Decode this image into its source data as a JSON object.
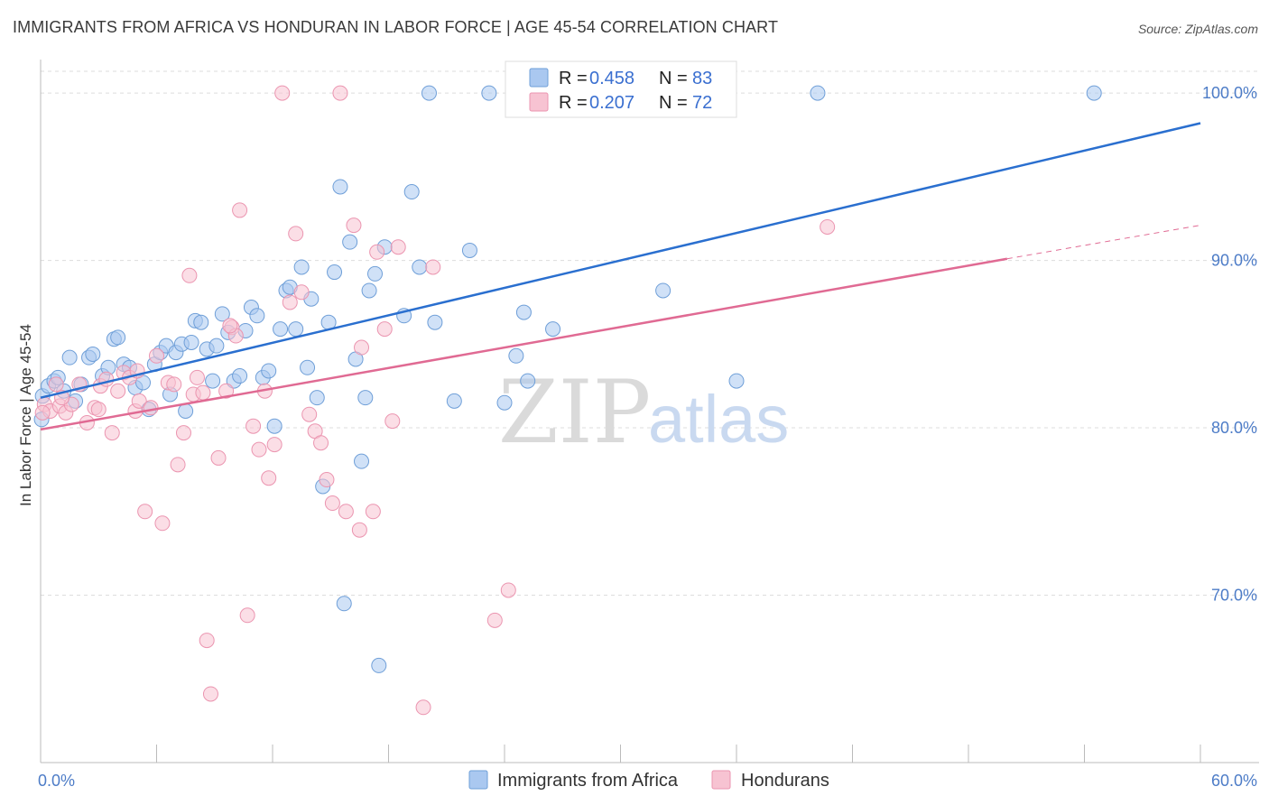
{
  "title": "IMMIGRANTS FROM AFRICA VS HONDURAN IN LABOR FORCE | AGE 45-54 CORRELATION CHART",
  "source": "Source: ZipAtlas.com",
  "watermark": {
    "zip": "ZIP",
    "atlas": "atlas"
  },
  "colors": {
    "blue_fill": "#aac8f0",
    "blue_stroke": "#6f9fd8",
    "blue_line": "#2a6fcf",
    "pink_fill": "#f7c3d2",
    "pink_stroke": "#eb95b0",
    "pink_line": "#e06a93",
    "grid": "#dddddd",
    "tick_text": "#4d7cc7"
  },
  "legend_top": {
    "rows": [
      {
        "r_label": "R = ",
        "r_value": "0.458",
        "n_label": "N = ",
        "n_value": "83",
        "color": "blue"
      },
      {
        "r_label": "R = ",
        "r_value": "0.207",
        "n_label": "N = ",
        "n_value": "72",
        "color": "pink"
      }
    ]
  },
  "chart_data": {
    "type": "scatter",
    "xlabel": "",
    "ylabel": "In Labor Force | Age 45-54",
    "xlim": [
      0,
      60
    ],
    "ylim": [
      60,
      102
    ],
    "x_tick_labels": [
      {
        "value": 0,
        "label": "0.0%"
      },
      {
        "value": 60,
        "label": "60.0%"
      }
    ],
    "y_tick_labels": [
      {
        "value": 70,
        "label": "70.0%"
      },
      {
        "value": 80,
        "label": "80.0%"
      },
      {
        "value": 90,
        "label": "90.0%"
      },
      {
        "value": 100,
        "label": "100.0%"
      }
    ],
    "x_minor_ticks": [
      6,
      12,
      18,
      24,
      30,
      36,
      42,
      48,
      54,
      60
    ],
    "legend_position": "bottom",
    "series": [
      {
        "name": "Immigrants from Africa",
        "color": "blue",
        "trend": {
          "x": [
            0,
            60
          ],
          "y": [
            81.8,
            98.2
          ],
          "dashed_from": null
        },
        "points": [
          [
            0.1,
            81.9
          ],
          [
            0.4,
            82.5
          ],
          [
            0.7,
            82.8
          ],
          [
            0.9,
            83.0
          ],
          [
            1.2,
            82.2
          ],
          [
            1.5,
            84.2
          ],
          [
            1.8,
            81.6
          ],
          [
            2.1,
            82.6
          ],
          [
            2.5,
            84.2
          ],
          [
            2.7,
            84.4
          ],
          [
            3.2,
            83.1
          ],
          [
            3.5,
            83.6
          ],
          [
            3.8,
            85.3
          ],
          [
            4.0,
            85.4
          ],
          [
            4.3,
            83.8
          ],
          [
            4.6,
            83.6
          ],
          [
            4.9,
            82.4
          ],
          [
            5.3,
            82.7
          ],
          [
            5.6,
            81.1
          ],
          [
            5.9,
            83.8
          ],
          [
            6.2,
            84.5
          ],
          [
            6.5,
            84.9
          ],
          [
            6.7,
            82.0
          ],
          [
            7.0,
            84.5
          ],
          [
            7.3,
            85.0
          ],
          [
            7.5,
            81.0
          ],
          [
            7.8,
            85.1
          ],
          [
            8.0,
            86.4
          ],
          [
            8.3,
            86.3
          ],
          [
            8.6,
            84.7
          ],
          [
            8.9,
            82.8
          ],
          [
            9.1,
            84.9
          ],
          [
            9.4,
            86.8
          ],
          [
            9.7,
            85.7
          ],
          [
            10.0,
            82.8
          ],
          [
            10.3,
            83.1
          ],
          [
            10.6,
            85.8
          ],
          [
            10.9,
            87.2
          ],
          [
            11.2,
            86.7
          ],
          [
            11.5,
            83.0
          ],
          [
            11.8,
            83.4
          ],
          [
            12.1,
            80.1
          ],
          [
            12.4,
            85.9
          ],
          [
            12.7,
            88.2
          ],
          [
            12.9,
            88.4
          ],
          [
            13.2,
            85.9
          ],
          [
            13.5,
            89.6
          ],
          [
            13.8,
            83.6
          ],
          [
            14.0,
            87.7
          ],
          [
            14.3,
            81.8
          ],
          [
            14.6,
            76.5
          ],
          [
            14.9,
            86.3
          ],
          [
            15.2,
            89.3
          ],
          [
            15.5,
            94.4
          ],
          [
            15.7,
            69.5
          ],
          [
            16.0,
            91.1
          ],
          [
            16.3,
            84.1
          ],
          [
            16.6,
            78.0
          ],
          [
            16.8,
            81.8
          ],
          [
            17.0,
            88.2
          ],
          [
            17.3,
            89.2
          ],
          [
            17.5,
            65.8
          ],
          [
            17.8,
            90.8
          ],
          [
            18.8,
            86.7
          ],
          [
            19.2,
            94.1
          ],
          [
            19.6,
            89.6
          ],
          [
            20.1,
            100.0
          ],
          [
            20.4,
            86.3
          ],
          [
            21.4,
            81.6
          ],
          [
            22.2,
            90.6
          ],
          [
            23.2,
            100.0
          ],
          [
            24.0,
            81.5
          ],
          [
            24.6,
            84.3
          ],
          [
            25.0,
            86.9
          ],
          [
            25.2,
            82.8
          ],
          [
            26.5,
            85.9
          ],
          [
            29.3,
            100.0
          ],
          [
            29.8,
            100.0
          ],
          [
            32.2,
            88.2
          ],
          [
            36.0,
            82.8
          ],
          [
            40.2,
            100.0
          ],
          [
            54.5,
            100.0
          ],
          [
            0.05,
            80.5
          ]
        ],
        "point_radius": 8
      },
      {
        "name": "Hondurans",
        "color": "pink",
        "trend": {
          "x": [
            0,
            50,
            60
          ],
          "y": [
            79.9,
            90.1,
            92.1
          ],
          "dashed_from": 50
        },
        "points": [
          [
            0.2,
            81.4
          ],
          [
            0.5,
            81.0
          ],
          [
            0.8,
            82.6
          ],
          [
            1.0,
            81.3
          ],
          [
            1.3,
            80.9
          ],
          [
            1.6,
            81.4
          ],
          [
            2.0,
            82.6
          ],
          [
            2.4,
            80.3
          ],
          [
            2.8,
            81.2
          ],
          [
            3.1,
            82.5
          ],
          [
            3.4,
            82.9
          ],
          [
            3.7,
            79.7
          ],
          [
            4.0,
            82.2
          ],
          [
            4.3,
            83.3
          ],
          [
            4.6,
            83.0
          ],
          [
            4.9,
            81.0
          ],
          [
            5.1,
            81.6
          ],
          [
            5.4,
            75.0
          ],
          [
            5.7,
            81.2
          ],
          [
            6.0,
            84.3
          ],
          [
            6.3,
            74.3
          ],
          [
            6.6,
            82.7
          ],
          [
            6.9,
            82.6
          ],
          [
            7.1,
            77.8
          ],
          [
            7.4,
            79.7
          ],
          [
            7.7,
            89.1
          ],
          [
            7.9,
            82.0
          ],
          [
            8.1,
            83.0
          ],
          [
            8.4,
            82.1
          ],
          [
            8.6,
            67.3
          ],
          [
            8.8,
            64.1
          ],
          [
            9.2,
            78.2
          ],
          [
            9.6,
            82.2
          ],
          [
            9.9,
            86.0
          ],
          [
            10.1,
            85.5
          ],
          [
            10.3,
            93.0
          ],
          [
            10.7,
            68.8
          ],
          [
            11.0,
            80.1
          ],
          [
            11.3,
            78.7
          ],
          [
            11.6,
            82.2
          ],
          [
            11.8,
            77.0
          ],
          [
            12.1,
            79.0
          ],
          [
            12.5,
            100.0
          ],
          [
            12.9,
            87.5
          ],
          [
            13.2,
            91.6
          ],
          [
            13.5,
            88.1
          ],
          [
            13.9,
            80.8
          ],
          [
            14.2,
            79.8
          ],
          [
            14.5,
            79.1
          ],
          [
            14.8,
            76.9
          ],
          [
            15.1,
            75.5
          ],
          [
            15.5,
            100.0
          ],
          [
            15.8,
            75.0
          ],
          [
            16.2,
            92.1
          ],
          [
            16.5,
            73.9
          ],
          [
            16.6,
            84.8
          ],
          [
            17.2,
            75.0
          ],
          [
            17.4,
            90.5
          ],
          [
            17.8,
            85.9
          ],
          [
            18.2,
            80.4
          ],
          [
            18.5,
            90.8
          ],
          [
            19.8,
            63.3
          ],
          [
            20.3,
            89.6
          ],
          [
            23.5,
            68.5
          ],
          [
            24.2,
            70.3
          ],
          [
            28.3,
            100.0
          ],
          [
            40.7,
            92.0
          ],
          [
            1.1,
            81.8
          ],
          [
            3.0,
            81.1
          ],
          [
            5.0,
            83.4
          ],
          [
            9.8,
            86.1
          ],
          [
            0.1,
            80.9
          ]
        ],
        "point_radius": 8
      }
    ]
  }
}
